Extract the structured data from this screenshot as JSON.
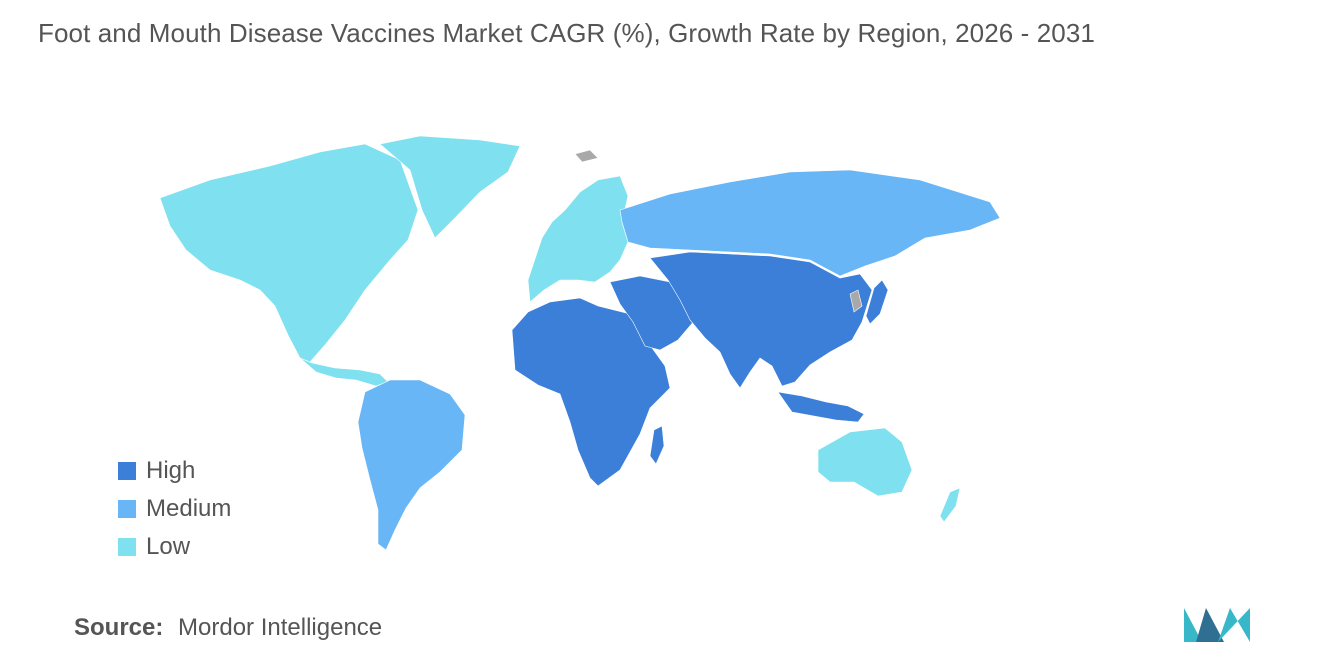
{
  "title": "Foot and Mouth Disease Vaccines Market CAGR (%), Growth Rate by Region, 2026 - 2031",
  "colors": {
    "high": "#3b7fd9",
    "medium": "#69b6f7",
    "low": "#7fe0ef",
    "no_data": "#a9a9a9",
    "text": "#555555"
  },
  "legend": [
    {
      "label": "High",
      "color": "#3b7fd9"
    },
    {
      "label": "Medium",
      "color": "#69b6f7"
    },
    {
      "label": "Low",
      "color": "#7fe0ef"
    }
  ],
  "regions": [
    {
      "name": "North America",
      "level": "Low"
    },
    {
      "name": "Greenland",
      "level": "Low"
    },
    {
      "name": "Europe",
      "level": "Low"
    },
    {
      "name": "Australia and New Zealand",
      "level": "Low"
    },
    {
      "name": "South America",
      "level": "Medium"
    },
    {
      "name": "Russia",
      "level": "Medium"
    },
    {
      "name": "Africa",
      "level": "High"
    },
    {
      "name": "Middle East",
      "level": "High"
    },
    {
      "name": "Asia",
      "level": "High"
    }
  ],
  "source": {
    "label": "Source:",
    "value": "Mordor Intelligence"
  },
  "logo": {
    "name": "mordor-intelligence-logo",
    "colors": [
      "#2f6f92",
      "#38b7c9"
    ]
  }
}
